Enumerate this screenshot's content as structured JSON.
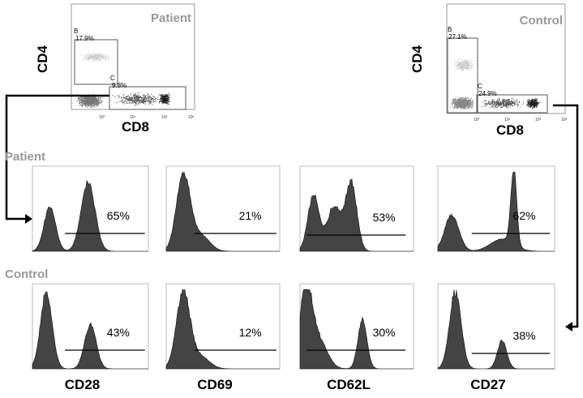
{
  "chart_data": [
    {
      "type": "scatter",
      "group": "Patient",
      "xlabel": "CD8",
      "ylabel": "CD4",
      "tick_labels": [
        "10⁰",
        "10¹",
        "10²",
        "10³"
      ],
      "gates": [
        {
          "name": "B",
          "value": "17.9%"
        },
        {
          "name": "C",
          "value": "9.8%"
        }
      ]
    },
    {
      "type": "scatter",
      "group": "Control",
      "xlabel": "CD8",
      "ylabel": "CD4",
      "tick_labels": [
        "10⁰",
        "10¹",
        "10²",
        "10³"
      ],
      "gates": [
        {
          "name": "B",
          "value": "27.1%"
        },
        {
          "name": "C",
          "value": "24.9%"
        }
      ]
    },
    {
      "type": "area",
      "row_labels": [
        "Patient",
        "Control"
      ],
      "markers": [
        "CD28",
        "CD69",
        "CD62L",
        "CD27"
      ],
      "patient_percent": [
        "65%",
        "21%",
        "53%",
        "62%"
      ],
      "control_percent": [
        "43%",
        "12%",
        "30%",
        "38%"
      ]
    }
  ],
  "colors": {
    "histogram_fill": "#444444",
    "label_gray": "#999999"
  }
}
